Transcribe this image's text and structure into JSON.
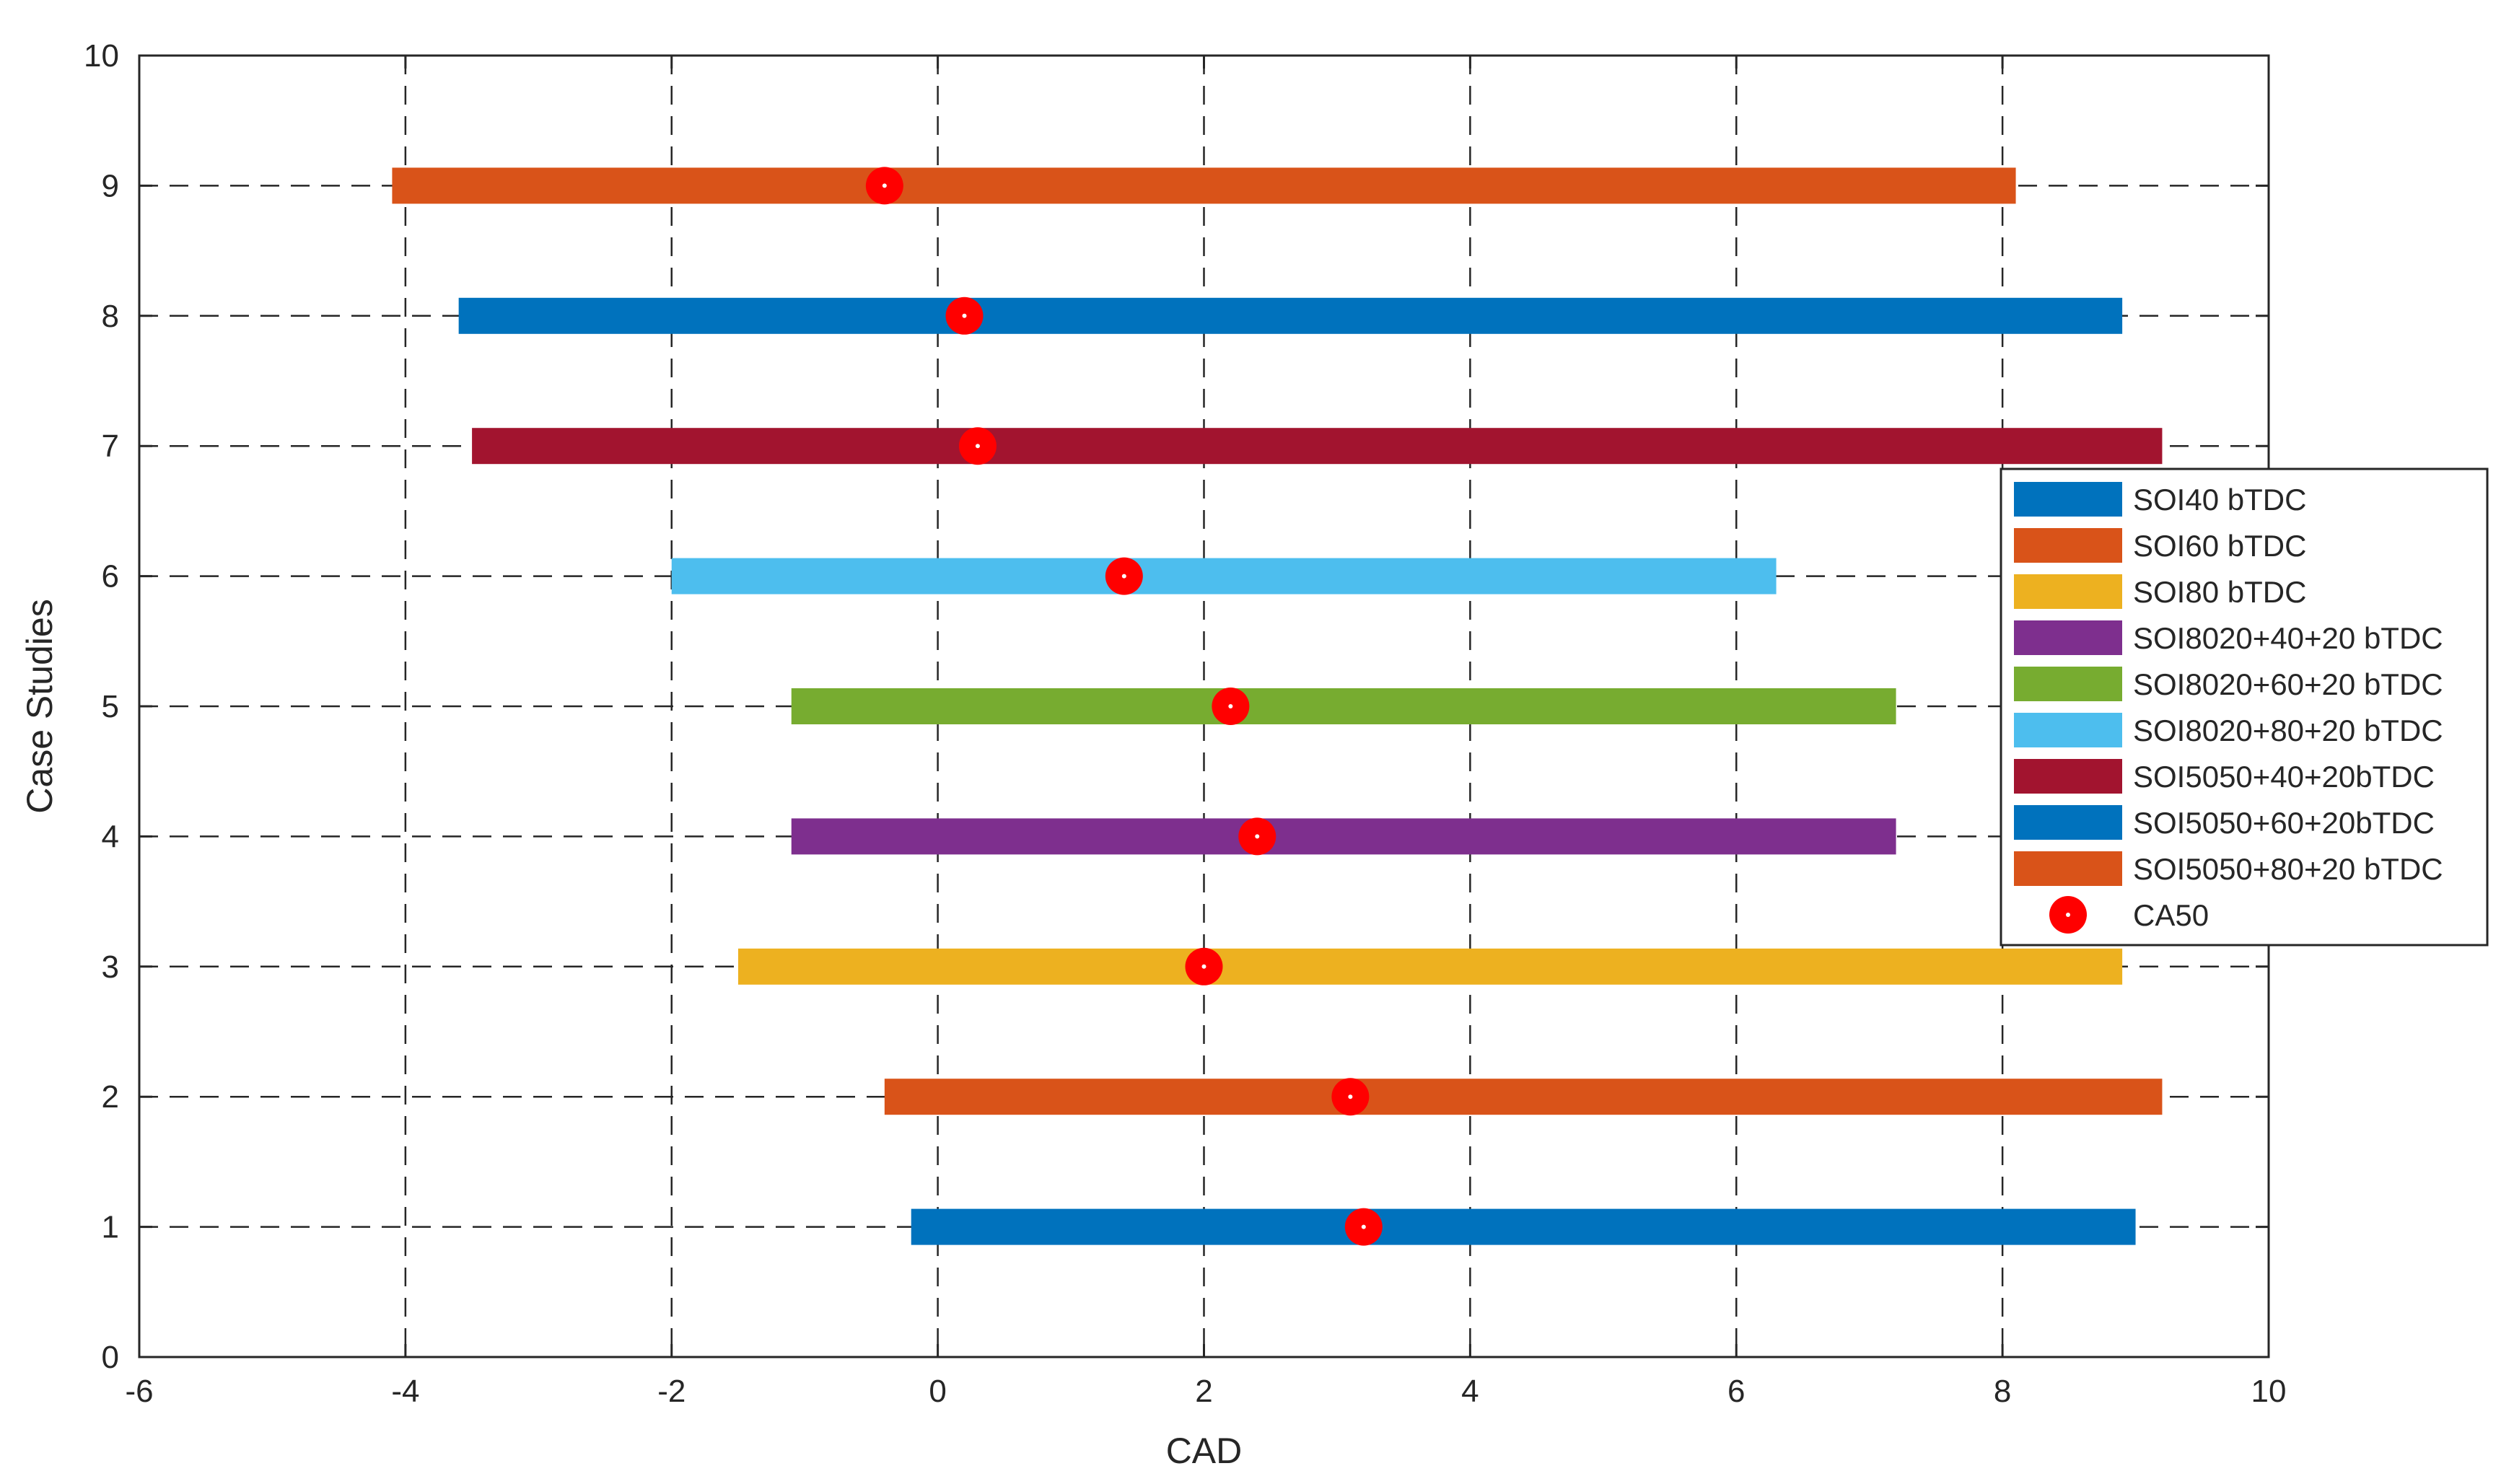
{
  "chart_data": {
    "type": "bar",
    "orientation": "horizontal-range",
    "title": "",
    "xlabel": "CAD",
    "ylabel": "Case Studies",
    "xlim": [
      -6,
      10
    ],
    "ylim": [
      0,
      10
    ],
    "xticks": [
      -6,
      -4,
      -2,
      0,
      2,
      4,
      6,
      8,
      10
    ],
    "yticks": [
      0,
      1,
      2,
      3,
      4,
      5,
      6,
      7,
      8,
      9,
      10
    ],
    "grid": true,
    "grid_style": "dashed",
    "legend_position": "right",
    "series": [
      {
        "name": "SOI40 bTDC",
        "case": 1,
        "start": -0.2,
        "end": 9.0,
        "ca50": 3.2,
        "color": "#0072BD"
      },
      {
        "name": "SOI60 bTDC",
        "case": 2,
        "start": -0.4,
        "end": 9.2,
        "ca50": 3.1,
        "color": "#D95319"
      },
      {
        "name": "SOI80 bTDC",
        "case": 3,
        "start": -1.5,
        "end": 8.9,
        "ca50": 2.0,
        "color": "#EDB120"
      },
      {
        "name": "SOI8020+40+20 bTDC",
        "case": 4,
        "start": -1.1,
        "end": 7.2,
        "ca50": 2.4,
        "color": "#7E2F8E"
      },
      {
        "name": "SOI8020+60+20 bTDC",
        "case": 5,
        "start": -1.1,
        "end": 7.2,
        "ca50": 2.2,
        "color": "#77AC30"
      },
      {
        "name": "SOI8020+80+20 bTDC",
        "case": 6,
        "start": -2.0,
        "end": 6.3,
        "ca50": 1.4,
        "color": "#4DBEEE"
      },
      {
        "name": "SOI5050+40+20bTDC",
        "case": 7,
        "start": -3.5,
        "end": 9.2,
        "ca50": 0.3,
        "color": "#A2142F"
      },
      {
        "name": "SOI5050+60+20bTDC",
        "case": 8,
        "start": -3.6,
        "end": 8.9,
        "ca50": 0.2,
        "color": "#0072BD"
      },
      {
        "name": "SOI5050+80+20 bTDC",
        "case": 9,
        "start": -4.1,
        "end": 8.1,
        "ca50": -0.4,
        "color": "#D95319"
      }
    ],
    "markers": {
      "name": "CA50",
      "color": "#FF0000"
    }
  }
}
